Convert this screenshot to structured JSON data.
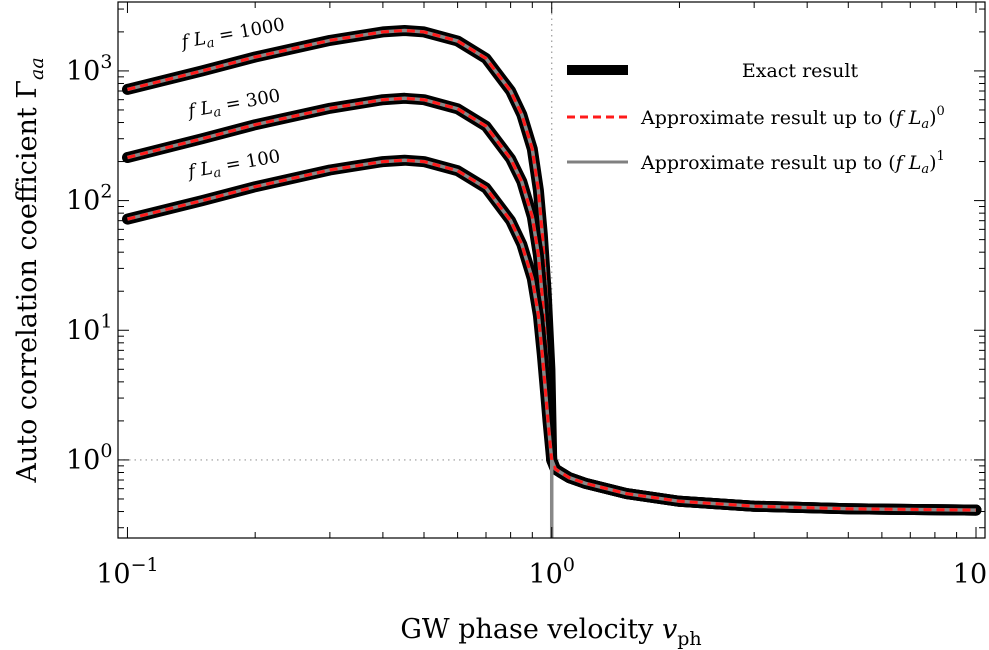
{
  "chart_data": {
    "type": "line",
    "title": "",
    "xlabel": "GW phase velocity v_ph",
    "ylabel": "Auto correlation coefficient Γ_aa",
    "xscale": "log",
    "yscale": "log",
    "xlim": [
      0.095,
      10.5
    ],
    "ylim": [
      0.25,
      3400
    ],
    "xticks": [
      {
        "value": 0.1,
        "base": "10",
        "exp": "−1"
      },
      {
        "value": 1,
        "base": "10",
        "exp": "0"
      },
      {
        "value": 10,
        "base": "10",
        "exp": "1"
      }
    ],
    "yticks": [
      {
        "value": 1,
        "base": "10",
        "exp": "0"
      },
      {
        "value": 10,
        "base": "10",
        "exp": "1"
      },
      {
        "value": 100,
        "base": "10",
        "exp": "2"
      },
      {
        "value": 1000,
        "base": "10",
        "exp": "3"
      }
    ],
    "reference_lines": [
      {
        "orientation": "vertical",
        "value": 1,
        "style": "dotted"
      },
      {
        "orientation": "horizontal",
        "value": 1,
        "style": "dotted"
      }
    ],
    "curve_labels": [
      "f L_a = 1000",
      "f L_a = 300",
      "f L_a = 100"
    ],
    "grid": false,
    "legend": {
      "placement": "top-right",
      "entries": [
        {
          "label": "Exact result",
          "style": "thick-solid",
          "color": "#000000"
        },
        {
          "label": "Approximate result up to (f L_a)^0",
          "style": "dashed",
          "color": "#ff1a1a"
        },
        {
          "label": "Approximate result up to (f L_a)^1",
          "style": "solid",
          "color": "#808080"
        }
      ]
    },
    "series": [
      {
        "name": "f L_a = 1000",
        "x": [
          0.1,
          0.15,
          0.2,
          0.3,
          0.4,
          0.45,
          0.5,
          0.6,
          0.7,
          0.8,
          0.85,
          0.9,
          0.93,
          0.95,
          0.97,
          0.98,
          0.99,
          1.0,
          1.02,
          1.05,
          1.1,
          1.2,
          1.5,
          2,
          3,
          5,
          10
        ],
        "y": [
          720,
          1000,
          1280,
          1720,
          2000,
          2050,
          2000,
          1700,
          1250,
          700,
          460,
          250,
          120,
          55,
          20,
          10,
          5,
          1.0,
          0.85,
          0.8,
          0.73,
          0.66,
          0.55,
          0.48,
          0.44,
          0.42,
          0.41
        ]
      },
      {
        "name": "f L_a = 300",
        "x": [
          0.1,
          0.15,
          0.2,
          0.3,
          0.4,
          0.45,
          0.5,
          0.6,
          0.7,
          0.8,
          0.85,
          0.9,
          0.93,
          0.95,
          0.97,
          0.98,
          0.99,
          1.0,
          1.02,
          1.05,
          1.1,
          1.2,
          1.5,
          2,
          3,
          5,
          10
        ],
        "y": [
          215,
          300,
          385,
          515,
          600,
          615,
          600,
          510,
          375,
          210,
          140,
          75,
          38,
          18,
          7,
          4,
          2.2,
          1.0,
          0.85,
          0.8,
          0.73,
          0.66,
          0.55,
          0.48,
          0.44,
          0.42,
          0.41
        ]
      },
      {
        "name": "f L_a = 100",
        "x": [
          0.1,
          0.15,
          0.2,
          0.3,
          0.4,
          0.45,
          0.5,
          0.6,
          0.7,
          0.8,
          0.85,
          0.9,
          0.93,
          0.95,
          0.97,
          0.98,
          0.99,
          1.0,
          1.02,
          1.05,
          1.1,
          1.2,
          1.5,
          2,
          3,
          5,
          10
        ],
        "y": [
          72,
          100,
          128,
          172,
          200,
          205,
          200,
          170,
          125,
          70,
          46,
          25,
          13,
          6.5,
          3,
          2,
          1.4,
          1.0,
          0.85,
          0.8,
          0.73,
          0.66,
          0.55,
          0.48,
          0.44,
          0.42,
          0.41
        ]
      }
    ]
  }
}
